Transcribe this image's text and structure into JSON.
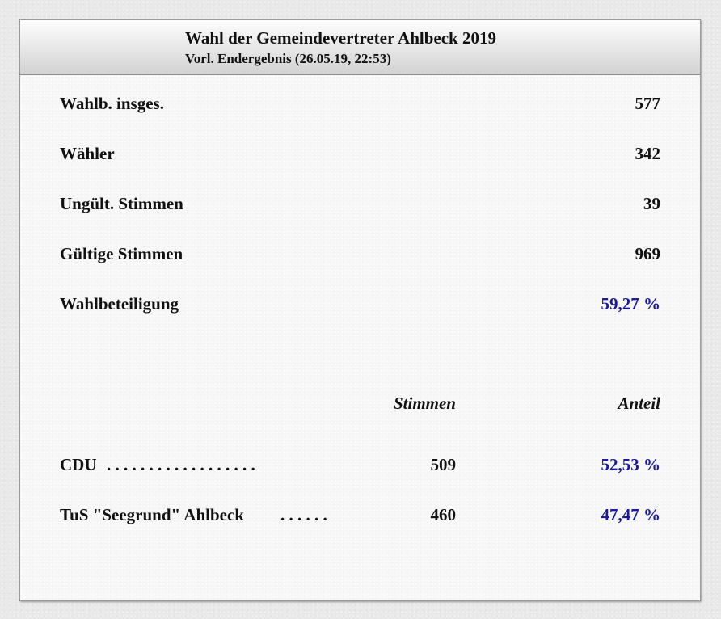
{
  "header": {
    "title": "Wahl der Gemeindevertreter Ahlbeck 2019",
    "subtitle": "Vorl. Endergebnis (26.05.19, 22:53)"
  },
  "summary": [
    {
      "label": "Wahlb. insges.",
      "value": "577"
    },
    {
      "label": "Wähler",
      "value": "342"
    },
    {
      "label": "Ungült. Stimmen",
      "value": "39"
    },
    {
      "label": "Gültige Stimmen",
      "value": "969"
    },
    {
      "label": "Wahlbeteiligung",
      "value": "59,27 %"
    }
  ],
  "results_table": {
    "headers": {
      "votes": "Stimmen",
      "share": "Anteil"
    },
    "rows": [
      {
        "party": "CDU",
        "leader_dots": ". . . . . . . . . . . . . . . . . .",
        "votes": "509",
        "share": "52,53 %"
      },
      {
        "party": "TuS \"Seegrund\" Ahlbeck",
        "leader_dots": ". . . . . .",
        "votes": "460",
        "share": "47,47 %"
      }
    ]
  },
  "colors": {
    "percentage_text": "#1a1aa0",
    "header_gradient_top": "#fdfdfd",
    "header_gradient_bottom": "#d2d2d2",
    "panel_background": "#f6f6f6"
  }
}
